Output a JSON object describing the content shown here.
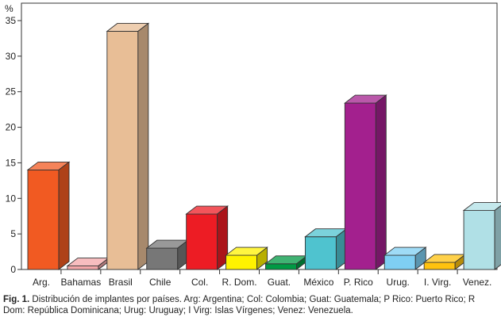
{
  "chart_data": {
    "type": "bar",
    "ylabel": "%",
    "ylim": [
      0,
      35
    ],
    "yticks": [
      0,
      5,
      10,
      15,
      20,
      25,
      30,
      35
    ],
    "categories": [
      "Arg.",
      "Bahamas",
      "Brasil",
      "Chile",
      "Col.",
      "R. Dom.",
      "Guat.",
      "México",
      "P. Rico",
      "Urug.",
      "I. Virg.",
      "Venez."
    ],
    "values": [
      14,
      0.5,
      33.5,
      3,
      7.8,
      2,
      0.8,
      4.6,
      23.4,
      2,
      1,
      8.3
    ],
    "colors": [
      "#F15A22",
      "#F4A7A9",
      "#E8BE96",
      "#777777",
      "#ED1C24",
      "#FFF200",
      "#009A44",
      "#4FC3CF",
      "#A3208E",
      "#7FCFF3",
      "#FFC20E",
      "#B0E0E6"
    ]
  },
  "caption": {
    "label": "Fig. 1.",
    "text": " Distribución de implantes por países. Arg: Argentina; Col: Colombia; Guat: Guatemala; P Rico: Puerto Rico; R Dom: República Dominicana; Urug: Uruguay; I Virg: Islas Vírgenes; Venez: Venezuela."
  }
}
